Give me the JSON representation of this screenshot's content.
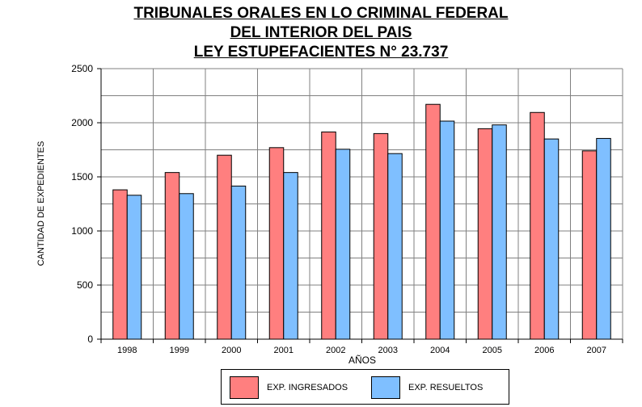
{
  "title_lines": [
    "TRIBUNALES ORALES EN LO CRIMINAL FEDERAL",
    "DEL INTERIOR DEL PAIS",
    "LEY ESTUPEFACIENTES N° 23.737"
  ],
  "chart_data": {
    "type": "bar",
    "title": "TRIBUNALES ORALES EN LO CRIMINAL FEDERAL DEL INTERIOR DEL PAIS LEY ESTUPEFACIENTES N° 23.737",
    "xlabel": "AÑOS",
    "ylabel": "CANTIDAD DE EXPEDIENTES",
    "categories": [
      "1998",
      "1999",
      "2000",
      "2001",
      "2002",
      "2003",
      "2004",
      "2005",
      "2006",
      "2007"
    ],
    "series": [
      {
        "name": "EXP. INGRESADOS",
        "color": "#ff7f7f",
        "values": [
          1380,
          1540,
          1700,
          1770,
          1915,
          1900,
          2170,
          1945,
          2095,
          1740
        ]
      },
      {
        "name": "EXP. RESUELTOS",
        "color": "#7fbfff",
        "values": [
          1330,
          1345,
          1415,
          1540,
          1755,
          1715,
          2015,
          1980,
          1850,
          1855
        ]
      }
    ],
    "ylim": [
      0,
      2500
    ],
    "yticks": [
      "0",
      "500",
      "1000",
      "1500",
      "2000",
      "2500"
    ],
    "grid": true,
    "legend_position": "bottom"
  }
}
